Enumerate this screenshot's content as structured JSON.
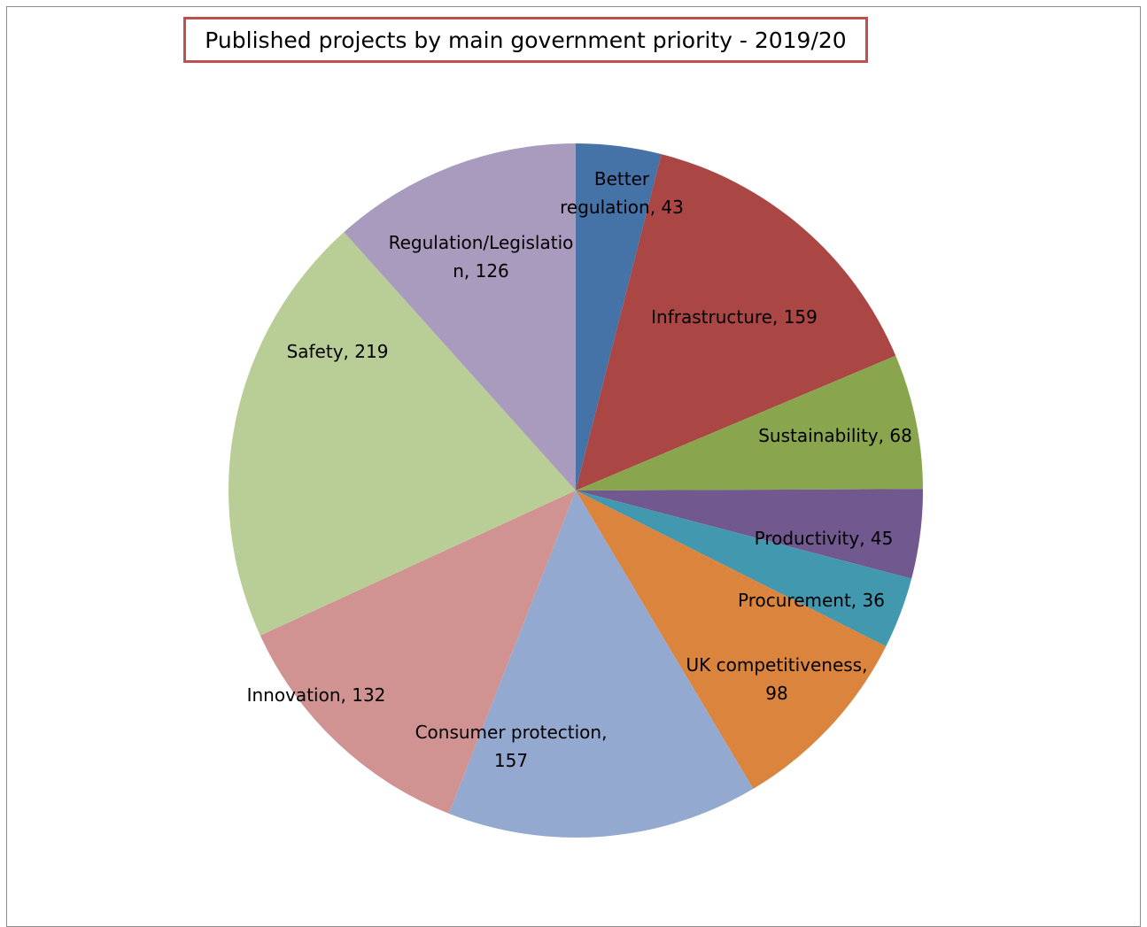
{
  "chart_data": {
    "type": "pie",
    "title": "Published projects by main government priority - 2019/20",
    "slices": [
      {
        "name": "Better regulation",
        "value": 43,
        "color": "#4572a7",
        "label_lines": [
          "Better",
          "regulation, 43"
        ]
      },
      {
        "name": "Infrastructure",
        "value": 159,
        "color": "#aa4643",
        "label_lines": [
          "Infrastructure, 159"
        ]
      },
      {
        "name": "Sustainability",
        "value": 68,
        "color": "#89a54e",
        "label_lines": [
          "Sustainability, 68"
        ]
      },
      {
        "name": "Productivity",
        "value": 45,
        "color": "#71588f",
        "label_lines": [
          "Productivity, 45"
        ]
      },
      {
        "name": "Procurement",
        "value": 36,
        "color": "#4198af",
        "label_lines": [
          "Procurement, 36"
        ]
      },
      {
        "name": "UK competitiveness",
        "value": 98,
        "color": "#db843d",
        "label_lines": [
          "UK competitiveness,",
          "98"
        ]
      },
      {
        "name": "Consumer protection",
        "value": 157,
        "color": "#93a9cf",
        "label_lines": [
          "Consumer protection,",
          "157"
        ]
      },
      {
        "name": "Innovation",
        "value": 132,
        "color": "#d19392",
        "label_lines": [
          "Innovation, 132"
        ]
      },
      {
        "name": "Safety",
        "value": 219,
        "color": "#b9cd96",
        "label_lines": [
          "Safety, 219"
        ]
      },
      {
        "name": "Regulation/Legislation",
        "value": 126,
        "color": "#a99bbd",
        "label_lines": [
          "Regulation/Legislatio",
          "n, 126"
        ]
      }
    ]
  }
}
